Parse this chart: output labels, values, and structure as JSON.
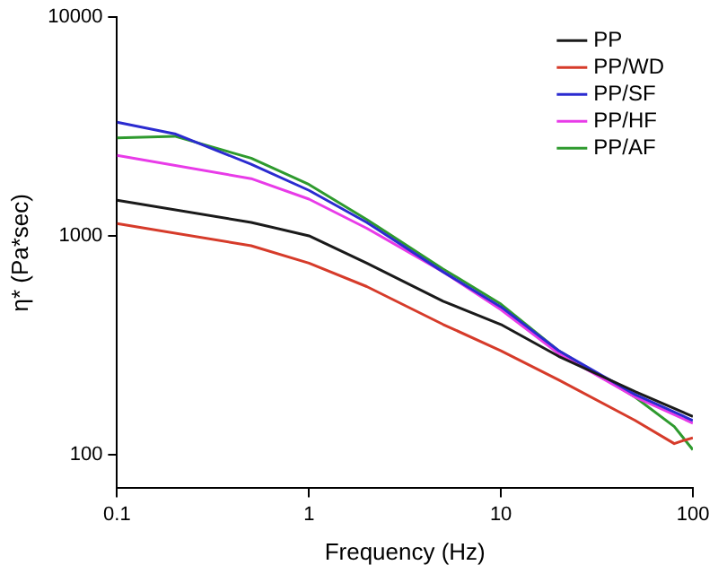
{
  "chart_data": {
    "type": "line",
    "xlabel": "Frequency (Hz)",
    "ylabel": "η* (Pa*sec)",
    "log": "xy",
    "grid": false,
    "legend": "top right",
    "marker": "none",
    "line_style": "solid",
    "xlim": [
      0.1,
      100
    ],
    "xticks": [
      0.1,
      1,
      10,
      100
    ],
    "ylim": [
      70,
      10000
    ],
    "yticks": [
      100,
      1000,
      10000
    ],
    "series": [
      {
        "name": "PP",
        "color": "#1a1a1a",
        "x": [
          0.1,
          0.5,
          1,
          2,
          5,
          10,
          20,
          50,
          100
        ],
        "values": [
          1456,
          1152,
          1000,
          750,
          502,
          393,
          281,
          194,
          149
        ]
      },
      {
        "name": "PP/WD",
        "color": "#d63b2a",
        "x": [
          0.1,
          0.5,
          1,
          2,
          5,
          10,
          20,
          50,
          80,
          90,
          100
        ],
        "values": [
          1137,
          901,
          750,
          586,
          393,
          298,
          219,
          143,
          112,
          116,
          119
        ]
      },
      {
        "name": "PP/SF",
        "color": "#2b2bd0",
        "x": [
          0.1,
          0.2,
          0.5,
          1,
          2,
          5,
          10,
          20,
          50,
          100
        ],
        "values": [
          3310,
          2929,
          2127,
          1614,
          1152,
          684,
          473,
          298,
          188,
          143
        ]
      },
      {
        "name": "PP/HF",
        "color": "#e83be8",
        "x": [
          0.1,
          0.5,
          1,
          2,
          5,
          10,
          20,
          50,
          100
        ],
        "values": [
          2334,
          1826,
          1472,
          1083,
          684,
          459,
          289,
          183,
          139
        ]
      },
      {
        "name": "PP/AF",
        "color": "#2e9a2e",
        "x": [
          0.1,
          0.2,
          0.5,
          1,
          2,
          5,
          10,
          20,
          50,
          80,
          100
        ],
        "values": [
          2803,
          2855,
          2264,
          1717,
          1188,
          705,
          487,
          298,
          183,
          134,
          105
        ]
      }
    ]
  }
}
